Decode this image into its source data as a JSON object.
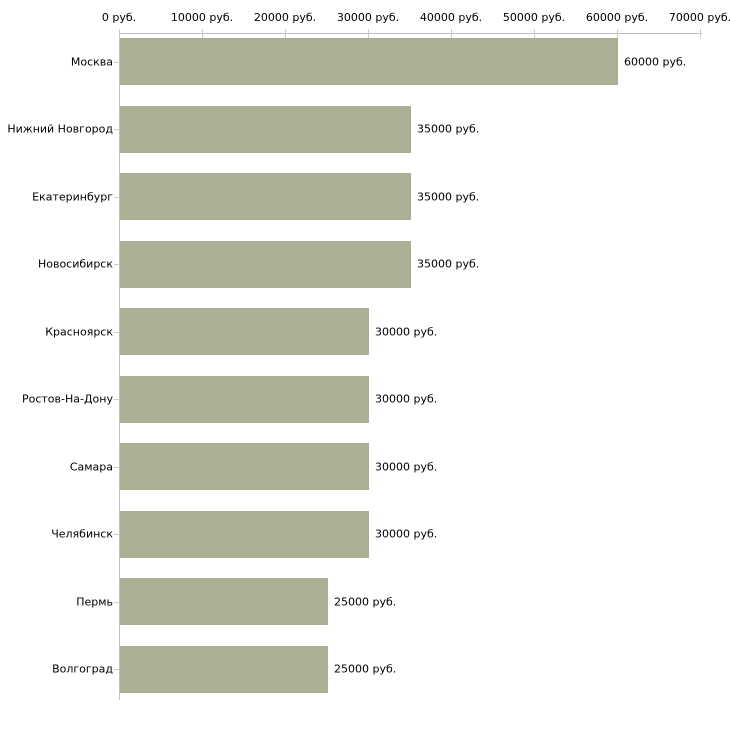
{
  "chart_data": {
    "type": "bar",
    "orientation": "horizontal",
    "title": "",
    "categories": [
      "Москва",
      "Нижний Новгород",
      "Екатеринбург",
      "Новосибирск",
      "Красноярск",
      "Ростов-На-Дону",
      "Самара",
      "Челябинск",
      "Пермь",
      "Волгоград"
    ],
    "values": [
      60000,
      35000,
      35000,
      35000,
      30000,
      30000,
      30000,
      30000,
      25000,
      25000
    ],
    "value_labels": [
      "60000 руб.",
      "35000 руб.",
      "35000 руб.",
      "35000 руб.",
      "30000 руб.",
      "30000 руб.",
      "30000 руб.",
      "30000 руб.",
      "25000 руб.",
      "25000 руб."
    ],
    "x_axis": {
      "position": "top",
      "min": 0,
      "max": 70000,
      "ticks": [
        0,
        10000,
        20000,
        30000,
        40000,
        50000,
        60000,
        70000
      ],
      "tick_labels": [
        "0 руб.",
        "10000 руб.",
        "20000 руб.",
        "30000 руб.",
        "40000 руб.",
        "50000 руб.",
        "60000 руб.",
        "70000 руб."
      ]
    },
    "grid": false,
    "legend": null,
    "colors": {
      "bar": "#abb095",
      "axis_line": "#c0c0c0",
      "tick_mark": "#cdd1b2",
      "text": "#000000",
      "background": "#ffffff"
    }
  }
}
